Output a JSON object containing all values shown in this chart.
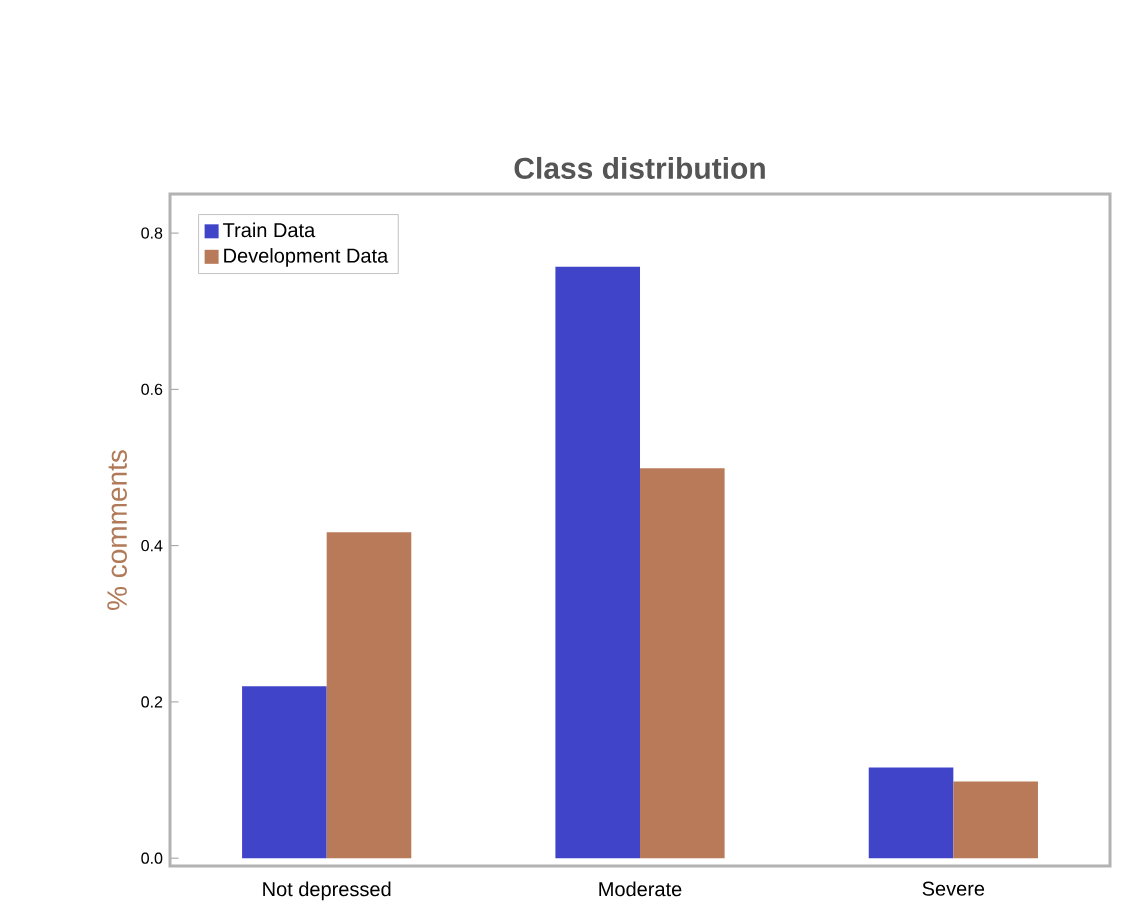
{
  "chart_data": {
    "type": "bar",
    "title": "Class distribution",
    "ylabel": "% comments",
    "categories": [
      "Not depressed",
      "Moderate",
      "Severe"
    ],
    "series": [
      {
        "name": "Train Data",
        "color": "#3f44c8",
        "values": [
          0.22,
          0.757,
          0.116
        ]
      },
      {
        "name": "Development Data",
        "color": "#b87a58",
        "values": [
          0.417,
          0.499,
          0.098
        ]
      }
    ],
    "ylim": [
      -0.01,
      0.85
    ],
    "yticks": [
      {
        "value": 0,
        "label": "0.0"
      },
      0.2,
      0.4,
      0.6,
      0.8
    ],
    "grid": false,
    "legend": "top left"
  }
}
